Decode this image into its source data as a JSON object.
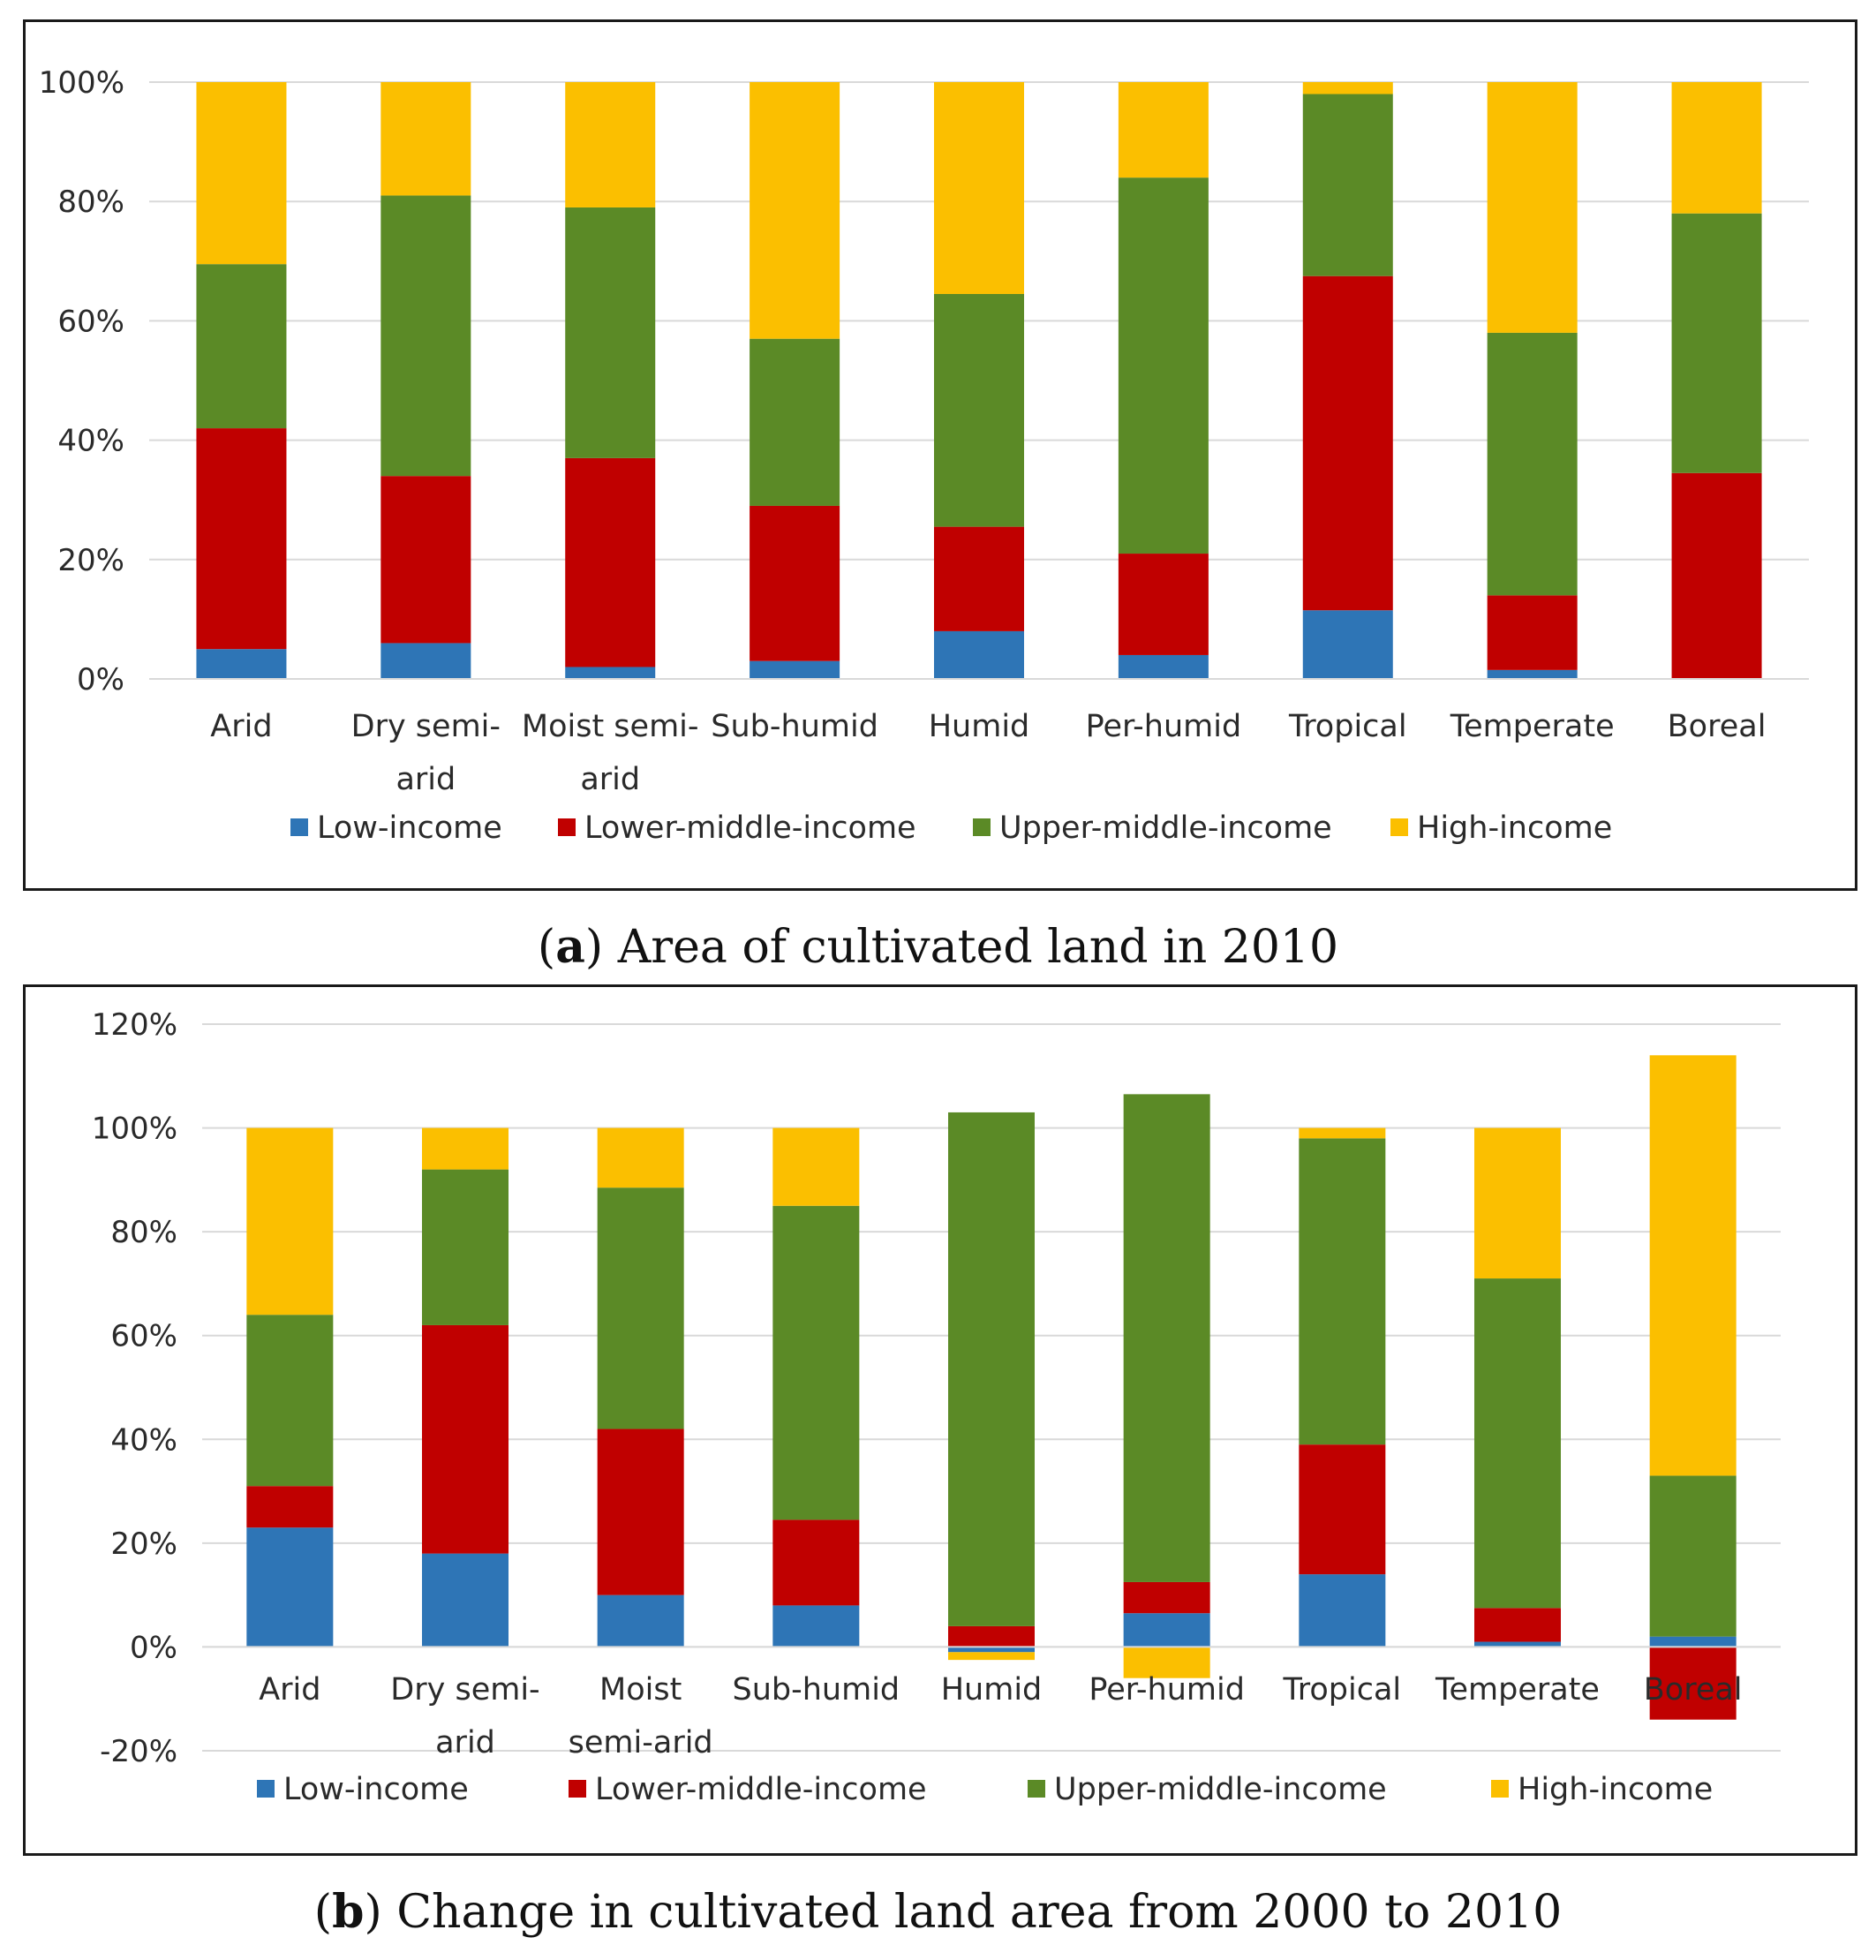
{
  "chart_data": [
    {
      "id": "a",
      "type": "bar",
      "stacked": true,
      "title": "",
      "caption_letter": "a",
      "caption_text": " Area of cultivated land in 2010",
      "xlabel": "",
      "ylabel": "",
      "ylim": [
        0,
        100
      ],
      "yticks": [
        "0%",
        "20%",
        "40%",
        "60%",
        "80%",
        "100%"
      ],
      "grid": true,
      "legend_position": "bottom",
      "categories": [
        [
          "Arid"
        ],
        [
          "Dry semi-",
          "arid"
        ],
        [
          "Moist semi-",
          "arid"
        ],
        [
          "Sub-humid"
        ],
        [
          "Humid"
        ],
        [
          "Per-humid"
        ],
        [
          "Tropical"
        ],
        [
          "Temperate"
        ],
        [
          "Boreal"
        ]
      ],
      "series": [
        {
          "name": "Low-income",
          "color": "#2e75b6",
          "values": [
            5,
            6,
            2,
            3,
            8,
            4,
            11.5,
            1.5,
            0
          ]
        },
        {
          "name": "Lower-middle-income",
          "color": "#c00000",
          "values": [
            37,
            28,
            35,
            26,
            17.5,
            17,
            56,
            12.5,
            34.5
          ]
        },
        {
          "name": "Upper-middle-income",
          "color": "#5b8a26",
          "values": [
            27.5,
            47,
            42,
            28,
            39,
            63,
            30.5,
            44,
            43.5
          ]
        },
        {
          "name": "High-income",
          "color": "#fbbf00",
          "values": [
            30.5,
            19,
            21,
            43,
            35.5,
            16,
            2,
            42,
            22
          ]
        }
      ]
    },
    {
      "id": "b",
      "type": "bar",
      "stacked": true,
      "title": "",
      "caption_letter": "b",
      "caption_text": " Change in cultivated land area from 2000 to 2010",
      "xlabel": "",
      "ylabel": "",
      "ylim": [
        -20,
        120
      ],
      "yticks": [
        "-20%",
        "0%",
        "20%",
        "40%",
        "60%",
        "80%",
        "100%",
        "120%"
      ],
      "grid": true,
      "legend_position": "bottom",
      "categories": [
        [
          "Arid"
        ],
        [
          "Dry semi-",
          "arid"
        ],
        [
          "Moist",
          "semi-arid"
        ],
        [
          "Sub-humid"
        ],
        [
          "Humid"
        ],
        [
          "Per-humid"
        ],
        [
          "Tropical"
        ],
        [
          "Temperate"
        ],
        [
          "Boreal"
        ]
      ],
      "series": [
        {
          "name": "Low-income",
          "color": "#2e75b6",
          "values": [
            23,
            18,
            10,
            8,
            -1,
            6.5,
            14,
            1,
            2
          ]
        },
        {
          "name": "Lower-middle-income",
          "color": "#c00000",
          "values": [
            8,
            44,
            32,
            16.5,
            4,
            6,
            25,
            6.5,
            -14
          ]
        },
        {
          "name": "Upper-middle-income",
          "color": "#5b8a26",
          "values": [
            33,
            30,
            46.5,
            60.5,
            99,
            94,
            59,
            63.5,
            31
          ]
        },
        {
          "name": "High-income",
          "color": "#fbbf00",
          "values": [
            36,
            8,
            11.5,
            15,
            -1.5,
            -6,
            2,
            29,
            81
          ]
        }
      ]
    }
  ]
}
